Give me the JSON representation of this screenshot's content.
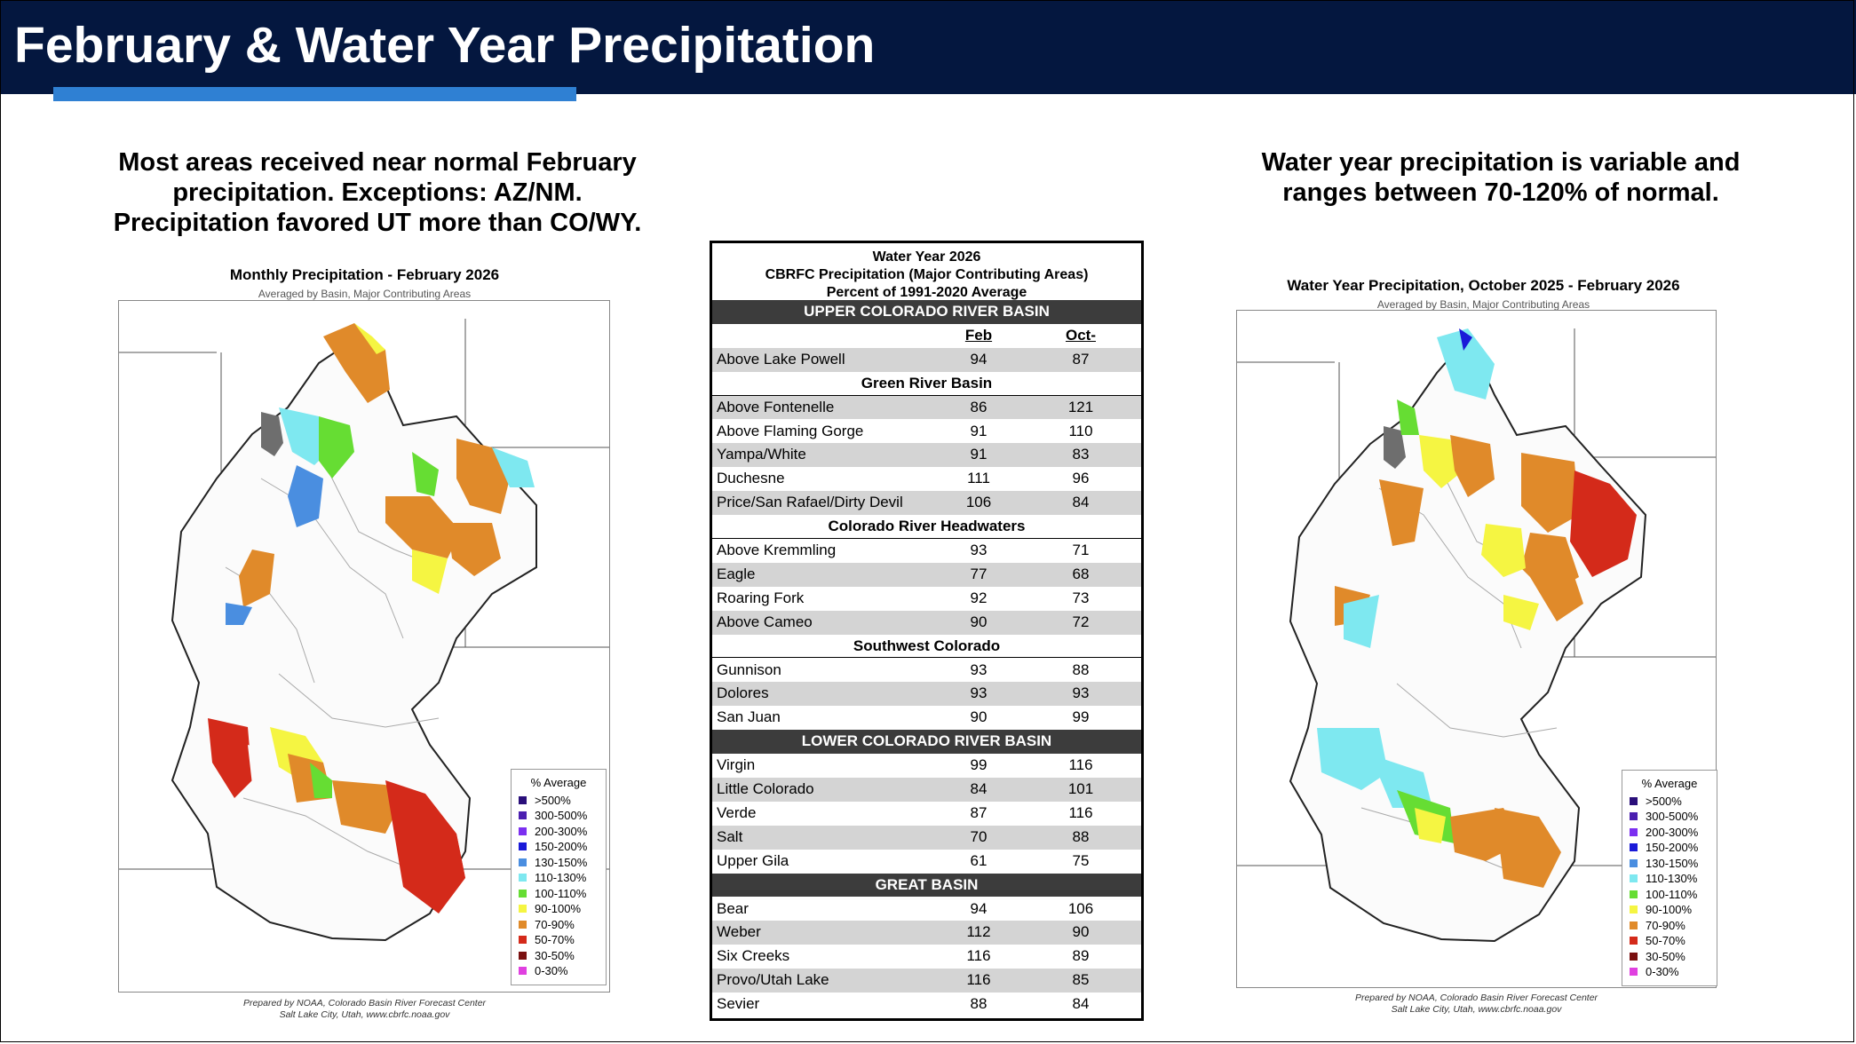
{
  "header": {
    "title": "February & Water Year Precipitation"
  },
  "left_caption": {
    "lines": [
      "Most areas received near normal February",
      "precipitation. Exceptions: AZ/NM.",
      "Precipitation favored UT more than CO/WY."
    ]
  },
  "right_caption": {
    "lines": [
      "Water year precipitation is variable and",
      "ranges between 70-120% of normal."
    ]
  },
  "left_map": {
    "title": "Monthly Precipitation - February 2026",
    "subtitle": "Averaged by Basin, Major Contributing Areas",
    "credit_line1": "Prepared by NOAA, Colorado Basin River Forecast Center",
    "credit_line2": "Salt Lake City, Utah, www.cbrfc.noaa.gov"
  },
  "right_map": {
    "title": "Water Year Precipitation, October 2025 - February 2026",
    "subtitle": "Averaged by Basin, Major Contributing Areas",
    "credit_line1": "Prepared by NOAA, Colorado Basin River Forecast Center",
    "credit_line2": "Salt Lake City, Utah, www.cbrfc.noaa.gov"
  },
  "legend": {
    "title": "% Average",
    "items": [
      {
        "label": ">500%",
        "color": "#2a0f7a"
      },
      {
        "label": "300-500%",
        "color": "#4b1fb0"
      },
      {
        "label": "200-300%",
        "color": "#7b2ff0"
      },
      {
        "label": "150-200%",
        "color": "#1a1ad8"
      },
      {
        "label": "130-150%",
        "color": "#4a8ee0"
      },
      {
        "label": "110-130%",
        "color": "#7ee8f0"
      },
      {
        "label": "100-110%",
        "color": "#66dd33"
      },
      {
        "label": "90-100%",
        "color": "#f5f542"
      },
      {
        "label": "70-90%",
        "color": "#e08a2a"
      },
      {
        "label": "50-70%",
        "color": "#d42a1a"
      },
      {
        "label": "30-50%",
        "color": "#7a1010"
      },
      {
        "label": "0-30%",
        "color": "#e040e0"
      }
    ]
  },
  "table": {
    "heading_lines": [
      "Water Year 2026",
      "CBRFC Precipitation (Major Contributing Areas)",
      "Percent of 1991-2020 Average"
    ],
    "col_feb": "Feb",
    "col_octfeb": "Oct-Feb",
    "rows": [
      {
        "type": "section",
        "label": "UPPER COLORADO RIVER BASIN"
      },
      {
        "type": "colhdr"
      },
      {
        "type": "data",
        "name": "Above Lake Powell",
        "feb": "94",
        "octfeb": "87",
        "shade": true
      },
      {
        "type": "sub",
        "label": "Green River Basin"
      },
      {
        "type": "data",
        "name": "Above Fontenelle",
        "feb": "86",
        "octfeb": "121",
        "shade": true
      },
      {
        "type": "data",
        "name": "Above Flaming Gorge",
        "feb": "91",
        "octfeb": "110",
        "shade": false
      },
      {
        "type": "data",
        "name": "Yampa/White",
        "feb": "91",
        "octfeb": "83",
        "shade": true
      },
      {
        "type": "data",
        "name": "Duchesne",
        "feb": "111",
        "octfeb": "96",
        "shade": false
      },
      {
        "type": "data",
        "name": "Price/San Rafael/Dirty Devil",
        "feb": "106",
        "octfeb": "84",
        "shade": true
      },
      {
        "type": "sub",
        "label": "Colorado River Headwaters"
      },
      {
        "type": "data",
        "name": "Above Kremmling",
        "feb": "93",
        "octfeb": "71",
        "shade": false
      },
      {
        "type": "data",
        "name": "Eagle",
        "feb": "77",
        "octfeb": "68",
        "shade": true
      },
      {
        "type": "data",
        "name": "Roaring Fork",
        "feb": "92",
        "octfeb": "73",
        "shade": false
      },
      {
        "type": "data",
        "name": "Above Cameo",
        "feb": "90",
        "octfeb": "72",
        "shade": true
      },
      {
        "type": "sub",
        "label": "Southwest Colorado"
      },
      {
        "type": "data",
        "name": "Gunnison",
        "feb": "93",
        "octfeb": "88",
        "shade": false
      },
      {
        "type": "data",
        "name": "Dolores",
        "feb": "93",
        "octfeb": "93",
        "shade": true
      },
      {
        "type": "data",
        "name": "San Juan",
        "feb": "90",
        "octfeb": "99",
        "shade": false
      },
      {
        "type": "section",
        "label": "LOWER COLORADO RIVER BASIN"
      },
      {
        "type": "data",
        "name": "Virgin",
        "feb": "99",
        "octfeb": "116",
        "shade": false
      },
      {
        "type": "data",
        "name": "Little Colorado",
        "feb": "84",
        "octfeb": "101",
        "shade": true
      },
      {
        "type": "data",
        "name": "Verde",
        "feb": "87",
        "octfeb": "116",
        "shade": false
      },
      {
        "type": "data",
        "name": "Salt",
        "feb": "70",
        "octfeb": "88",
        "shade": true
      },
      {
        "type": "data",
        "name": "Upper Gila",
        "feb": "61",
        "octfeb": "75",
        "shade": false
      },
      {
        "type": "section",
        "label": "GREAT BASIN"
      },
      {
        "type": "data",
        "name": "Bear",
        "feb": "94",
        "octfeb": "106",
        "shade": false
      },
      {
        "type": "data",
        "name": "Weber",
        "feb": "112",
        "octfeb": "90",
        "shade": true
      },
      {
        "type": "data",
        "name": "Six Creeks",
        "feb": "116",
        "octfeb": "89",
        "shade": false
      },
      {
        "type": "data",
        "name": "Provo/Utah Lake",
        "feb": "116",
        "octfeb": "85",
        "shade": true
      },
      {
        "type": "data",
        "name": "Sevier",
        "feb": "88",
        "octfeb": "84",
        "shade": false
      }
    ]
  }
}
